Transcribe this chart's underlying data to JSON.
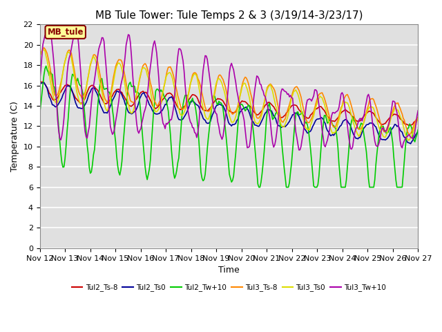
{
  "title": "MB Tule Tower: Tule Temps 2 & 3 (3/19/14-3/23/17)",
  "xlabel": "Time",
  "ylabel": "Temperature (C)",
  "ylim": [
    0,
    22
  ],
  "yticks": [
    0,
    2,
    4,
    6,
    8,
    10,
    12,
    14,
    16,
    18,
    20,
    22
  ],
  "xtick_labels": [
    "Nov 12",
    "Nov 13",
    "Nov 14",
    "Nov 15",
    "Nov 16",
    "Nov 17",
    "Nov 18",
    "Nov 19",
    "Nov 20",
    "Nov 21",
    "Nov 22",
    "Nov 23",
    "Nov 24",
    "Nov 25",
    "Nov 26",
    "Nov 27"
  ],
  "legend_label": "MB_tule",
  "series_colors": {
    "Tul2_Ts-8": "#cc0000",
    "Tul2_Ts0": "#000099",
    "Tul2_Tw+10": "#00cc00",
    "Tul3_Ts-8": "#ff8800",
    "Tul3_Ts0": "#dddd00",
    "Tul3_Tw+10": "#aa00aa"
  },
  "background_color": "#e0e0e0",
  "plot_bg_color": "#e0e0e0",
  "title_fontsize": 11,
  "axis_label_fontsize": 9,
  "tick_fontsize": 8,
  "legend_box_color": "#ffff99",
  "legend_box_edge": "#880000"
}
